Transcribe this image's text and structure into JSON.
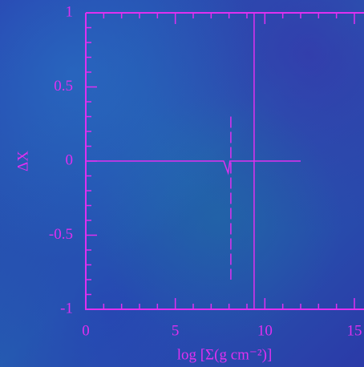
{
  "chart_data": {
    "type": "line",
    "xlabel": "log [Σ(g cm⁻²)]",
    "ylabel": "ΔX",
    "xlim": [
      0,
      15
    ],
    "ylim": [
      -1,
      1
    ],
    "xticks": [
      0,
      5,
      10,
      15
    ],
    "yticks": [
      -1,
      {
        "value": -0.5,
        "label": "-0.5"
      },
      0,
      0.5,
      1
    ],
    "xminorticks": [
      1,
      2,
      3,
      4,
      6,
      7,
      8,
      9,
      11,
      12,
      13,
      14
    ],
    "yminorticks": [
      -0.9,
      -0.8,
      -0.7,
      -0.6,
      -0.4,
      -0.3,
      -0.2,
      -0.1,
      0.1,
      0.2,
      0.3,
      0.4,
      0.6,
      0.7,
      0.8,
      0.9
    ],
    "color": "#e030f0",
    "series": [
      {
        "x": [
          0,
          7.7,
          7.85,
          7.95,
          8.05,
          12
        ],
        "values": [
          0,
          0,
          -0.05,
          -0.08,
          0,
          0
        ],
        "dash": false
      },
      {
        "x": [
          8.1,
          8.1
        ],
        "values": [
          0.3,
          -0.8
        ],
        "dash": true
      },
      {
        "x": [
          9.4,
          9.4
        ],
        "values": [
          -1,
          1
        ],
        "dash": false
      }
    ]
  }
}
